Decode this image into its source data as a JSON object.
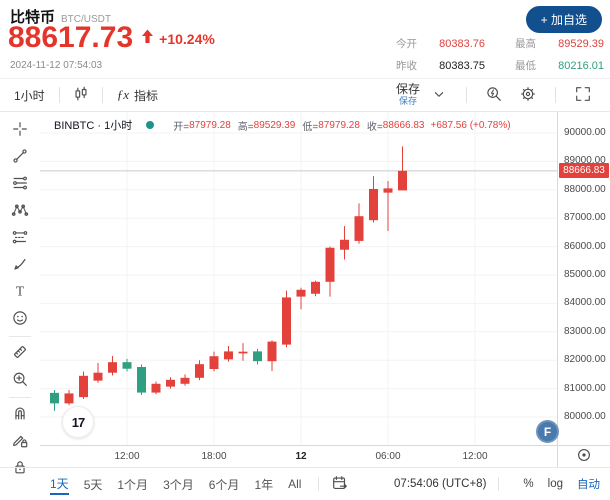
{
  "colors": {
    "up_red": "#e2413c",
    "down_green": "#2f9e81",
    "accent_blue": "#1a66b8",
    "button_blue": "#114f8e",
    "price_red": "#e5352b"
  },
  "header": {
    "symbol_name": "比特币",
    "symbol_pair": "BTC/USDT",
    "price": "88617.73",
    "change_percent": "+10.24%",
    "timestamp": "2024-11-12 07:54:03",
    "watchlist_button": "+ 加自选",
    "stats": [
      {
        "label": "今开",
        "value": "80383.76",
        "color": "red"
      },
      {
        "label": "最高",
        "value": "89529.39",
        "color": "red"
      },
      {
        "label": "昨收",
        "value": "80383.75",
        "color": "dark"
      },
      {
        "label": "最低",
        "value": "80216.01",
        "color": "green"
      }
    ]
  },
  "toolbar": {
    "interval": "1小时",
    "fx_label": "ƒx",
    "indicators_label": "指标",
    "save_label": "保存",
    "save_sub_label": "保存"
  },
  "drawing_toolbar": {
    "items": [
      "crosshair-icon",
      "trend-line-icon",
      "fib-retracement-icon",
      "xabcd-pattern-icon",
      "forecast-icon",
      "brush-icon",
      "text-tool-icon",
      "emoji-icon",
      "divider",
      "ruler-icon",
      "zoom-in-icon",
      "divider",
      "magnet-icon",
      "drawing-lock-icon",
      "lock-icon"
    ]
  },
  "legend": {
    "series": "BINBTC · 1小时",
    "open_label": "开=",
    "open": "87979.28",
    "high_label": "高=",
    "high": "89529.39",
    "low_label": "低=",
    "low": "87979.28",
    "close_label": "收=",
    "close": "88666.83",
    "change": "+687.56 (+0.78%)"
  },
  "chart_data": {
    "type": "candlestick",
    "symbol": "BINBTC",
    "interval": "1小时",
    "last_price": 88666.83,
    "price_tag": "88666.83",
    "price_axis": {
      "min": 80000,
      "max": 90000,
      "step": 1000
    },
    "x_ticks": [
      {
        "label": "12:00",
        "index": 5
      },
      {
        "label": "18:00",
        "index": 11
      },
      {
        "label": "12",
        "index": 17,
        "bold": true
      },
      {
        "label": "06:00",
        "index": 23
      },
      {
        "label": "12:00",
        "index": 29
      }
    ],
    "candles": [
      [
        80850,
        80950,
        80216,
        80480
      ],
      [
        80480,
        80950,
        80420,
        80830
      ],
      [
        80700,
        81600,
        80640,
        81450
      ],
      [
        81280,
        81900,
        81200,
        81560
      ],
      [
        81560,
        82150,
        81460,
        81930
      ],
      [
        81930,
        82050,
        81600,
        81700
      ],
      [
        81760,
        81850,
        80780,
        80860
      ],
      [
        80860,
        81250,
        80800,
        81170
      ],
      [
        81070,
        81400,
        81000,
        81310
      ],
      [
        81170,
        81500,
        81100,
        81380
      ],
      [
        81380,
        82000,
        81300,
        81860
      ],
      [
        81690,
        82300,
        81600,
        82140
      ],
      [
        82030,
        82500,
        81950,
        82310
      ],
      [
        82240,
        82600,
        81980,
        82300
      ],
      [
        82310,
        82400,
        81850,
        81965
      ],
      [
        81965,
        82700,
        81620,
        82655
      ],
      [
        82550,
        84450,
        82450,
        84210
      ],
      [
        84240,
        84550,
        83790,
        84480
      ],
      [
        84340,
        84800,
        84250,
        84760
      ],
      [
        84760,
        86000,
        84240,
        85960
      ],
      [
        85890,
        86720,
        85545,
        86240
      ],
      [
        86200,
        87520,
        86100,
        87070
      ],
      [
        86930,
        88480,
        86850,
        88030
      ],
      [
        87900,
        88310,
        86550,
        88050
      ],
      [
        87979.28,
        89529.39,
        87979.28,
        88666.83
      ]
    ]
  },
  "bottom_bar": {
    "ranges": [
      {
        "label": "1天",
        "active": true
      },
      {
        "label": "5天",
        "active": false
      },
      {
        "label": "1个月",
        "active": false
      },
      {
        "label": "3个月",
        "active": false
      },
      {
        "label": "6个月",
        "active": false
      },
      {
        "label": "1年",
        "active": false
      },
      {
        "label": "All",
        "active": false
      }
    ],
    "time": "07:54:06 (UTC+8)",
    "percent_label": "%",
    "log_label": "log",
    "auto_label": "自动"
  },
  "floating": {
    "tv_logo": "17",
    "f_button": "F"
  }
}
